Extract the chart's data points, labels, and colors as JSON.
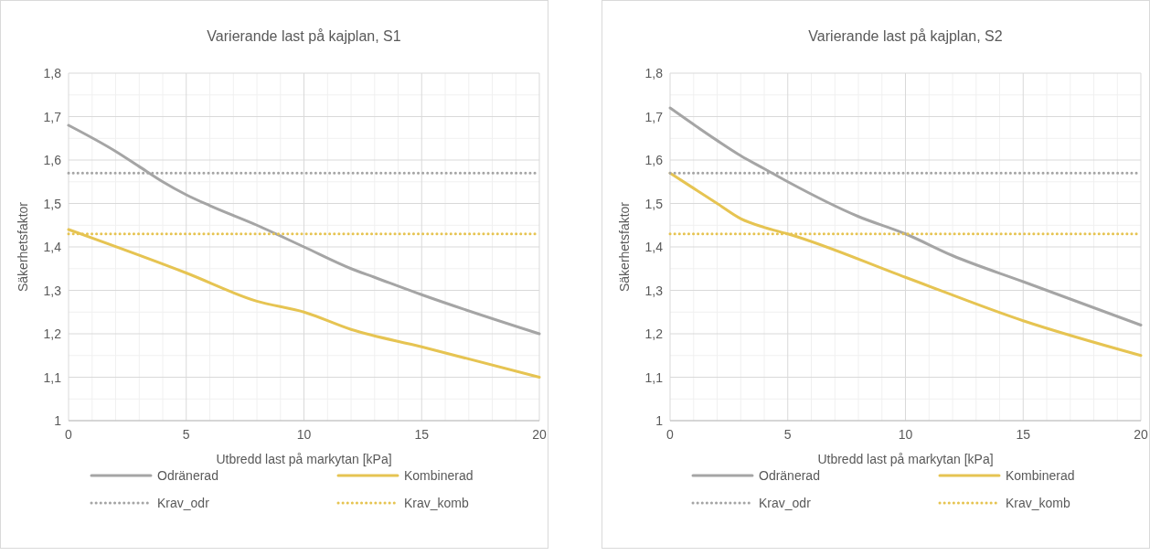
{
  "chart_data": [
    {
      "type": "line",
      "title": "Varierande last på kajplan, S1",
      "xlabel": "Utbredd last på markytan [kPa]",
      "ylabel": "Säkerhetsfaktor",
      "xlim": [
        0,
        20
      ],
      "xticks": [
        0,
        5,
        10,
        15,
        20
      ],
      "ylim": [
        1,
        1.8
      ],
      "yticks": [
        {
          "value": 1,
          "label": "1"
        },
        {
          "value": 1.1,
          "label": "1,1"
        },
        {
          "value": 1.2,
          "label": "1,2"
        },
        {
          "value": 1.3,
          "label": "1,3"
        },
        {
          "value": 1.4,
          "label": "1,4"
        },
        {
          "value": 1.5,
          "label": "1,5"
        },
        {
          "value": 1.6,
          "label": "1,6"
        },
        {
          "value": 1.7,
          "label": "1,7"
        },
        {
          "value": 1.8,
          "label": "1,8"
        }
      ],
      "grid": true,
      "legend": "bottom",
      "series": [
        {
          "name": "Odränerad",
          "color": "#a5a5a5",
          "line_style": "solid",
          "x": [
            0,
            2,
            3,
            4,
            5,
            6,
            8,
            10,
            12,
            13,
            15,
            20
          ],
          "values": [
            1.68,
            1.62,
            1.585,
            1.55,
            1.52,
            1.495,
            1.45,
            1.4,
            1.35,
            1.33,
            1.29,
            1.2
          ]
        },
        {
          "name": "Kombinerad",
          "color": "#e6c452",
          "line_style": "solid",
          "x": [
            0,
            5,
            8,
            10,
            12,
            15,
            20
          ],
          "values": [
            1.44,
            1.34,
            1.275,
            1.25,
            1.21,
            1.17,
            1.1
          ]
        },
        {
          "name": "Krav_odr",
          "color": "#a5a5a5",
          "line_style": "dotted",
          "x": [
            0,
            20
          ],
          "values": [
            1.57,
            1.57
          ]
        },
        {
          "name": "Krav_komb",
          "color": "#e6c452",
          "line_style": "dotted",
          "x": [
            0,
            20
          ],
          "values": [
            1.43,
            1.43
          ]
        }
      ]
    },
    {
      "type": "line",
      "title": "Varierande last på kajplan, S2",
      "xlabel": "Utbredd last på markytan [kPa]",
      "ylabel": "Säkerhetsfaktor",
      "xlim": [
        0,
        20
      ],
      "xticks": [
        0,
        5,
        10,
        15,
        20
      ],
      "ylim": [
        1,
        1.8
      ],
      "yticks": [
        {
          "value": 1,
          "label": "1"
        },
        {
          "value": 1.1,
          "label": "1,1"
        },
        {
          "value": 1.2,
          "label": "1,2"
        },
        {
          "value": 1.3,
          "label": "1,3"
        },
        {
          "value": 1.4,
          "label": "1,4"
        },
        {
          "value": 1.5,
          "label": "1,5"
        },
        {
          "value": 1.6,
          "label": "1,6"
        },
        {
          "value": 1.7,
          "label": "1,7"
        },
        {
          "value": 1.8,
          "label": "1,8"
        }
      ],
      "grid": true,
      "legend": "bottom",
      "series": [
        {
          "name": "Odränerad",
          "color": "#a5a5a5",
          "line_style": "solid",
          "x": [
            0,
            2,
            3,
            4,
            5,
            8,
            10,
            12,
            15,
            20
          ],
          "values": [
            1.72,
            1.645,
            1.61,
            1.58,
            1.55,
            1.47,
            1.43,
            1.38,
            1.32,
            1.22
          ]
        },
        {
          "name": "Kombinerad",
          "color": "#e6c452",
          "line_style": "solid",
          "x": [
            0,
            2,
            3,
            4,
            5,
            10,
            15,
            20
          ],
          "values": [
            1.57,
            1.5,
            1.465,
            1.445,
            1.43,
            1.33,
            1.23,
            1.15
          ]
        },
        {
          "name": "Krav_odr",
          "color": "#a5a5a5",
          "line_style": "dotted",
          "x": [
            0,
            20
          ],
          "values": [
            1.57,
            1.57
          ]
        },
        {
          "name": "Krav_komb",
          "color": "#e6c452",
          "line_style": "dotted",
          "x": [
            0,
            20
          ],
          "values": [
            1.43,
            1.43
          ]
        }
      ]
    }
  ]
}
